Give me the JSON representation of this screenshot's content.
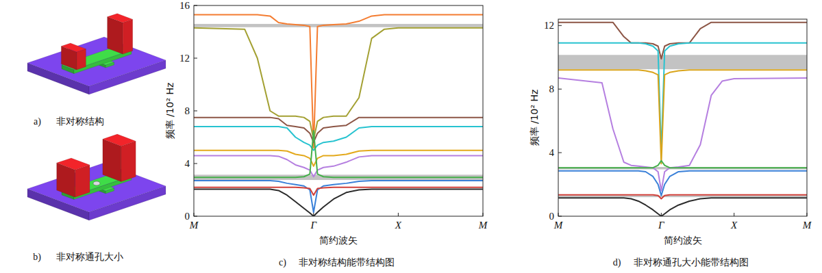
{
  "panels": [
    {
      "letter": "a)",
      "caption": "非对称结构"
    },
    {
      "letter": "b)",
      "caption": "非对称通孔大小"
    }
  ],
  "chart_data": [
    {
      "type": "line",
      "letter": "c)",
      "caption": "非对称结构能带结构图",
      "x_label": "简约波矢",
      "y_label": "频率 /10² Hz",
      "grid": false,
      "x": [
        0,
        0.6,
        0.75,
        0.9,
        1.0,
        1.1,
        1.2,
        1.3,
        1.37,
        1.414,
        1.46,
        1.53,
        1.65,
        1.8,
        1.95,
        2.1,
        2.25,
        2.414,
        3.414
      ],
      "xlim": [
        0,
        3.414
      ],
      "xticks": [
        {
          "value": 0,
          "label": "M"
        },
        {
          "value": 1.414,
          "label": "Γ"
        },
        {
          "value": 2.414,
          "label": "X"
        },
        {
          "value": 3.414,
          "label": "M"
        }
      ],
      "ylim": [
        0,
        16
      ],
      "yticks": [
        0,
        4,
        8,
        12,
        16
      ],
      "band_gaps": [
        [
          14.35,
          14.6
        ],
        [
          2.75,
          3.15
        ]
      ],
      "series": [
        {
          "color": "#f47c30",
          "values": [
            15.3,
            15.3,
            15.3,
            15.2,
            14.7,
            14.6,
            14.55,
            14.5,
            14.4,
            5.2,
            14.4,
            14.5,
            14.55,
            14.6,
            14.8,
            15.2,
            15.3,
            15.3,
            15.3
          ]
        },
        {
          "color": "#a3a032",
          "values": [
            14.3,
            14.2,
            12.0,
            8.0,
            7.6,
            7.6,
            7.6,
            7.5,
            7.2,
            5.8,
            7.2,
            7.5,
            7.6,
            7.6,
            9.0,
            13.5,
            14.2,
            14.3,
            14.3
          ]
        },
        {
          "color": "#8c5545",
          "values": [
            7.5,
            7.5,
            7.5,
            7.5,
            7.4,
            6.9,
            6.8,
            6.7,
            6.3,
            5.6,
            6.3,
            6.7,
            6.8,
            6.9,
            7.5,
            7.5,
            7.5,
            7.5,
            7.5
          ]
        },
        {
          "color": "#27c3d0",
          "values": [
            6.8,
            6.8,
            6.8,
            6.8,
            6.8,
            6.7,
            6.0,
            5.6,
            5.4,
            5.0,
            5.4,
            5.6,
            5.7,
            6.0,
            6.7,
            6.8,
            6.8,
            6.8,
            6.8
          ]
        },
        {
          "color": "#e3a91c",
          "values": [
            5.0,
            5.0,
            5.0,
            5.0,
            5.0,
            4.95,
            4.7,
            4.6,
            4.4,
            3.8,
            4.4,
            4.6,
            4.6,
            4.7,
            4.95,
            5.0,
            5.0,
            5.0,
            5.0
          ]
        },
        {
          "color": "#b57fe0",
          "values": [
            4.6,
            4.6,
            4.6,
            4.6,
            4.55,
            4.3,
            3.9,
            3.7,
            3.5,
            3.0,
            3.5,
            3.7,
            3.8,
            4.1,
            4.5,
            4.6,
            4.6,
            4.6,
            4.6
          ]
        },
        {
          "color": "#45b04a",
          "values": [
            2.95,
            2.95,
            2.95,
            2.95,
            2.95,
            2.95,
            2.95,
            3.0,
            3.2,
            6.5,
            3.2,
            3.0,
            2.95,
            2.95,
            2.95,
            2.95,
            2.95,
            2.95,
            2.95
          ]
        },
        {
          "color": "#3a80d8",
          "values": [
            2.7,
            2.7,
            2.7,
            2.7,
            2.65,
            2.5,
            2.4,
            2.3,
            2.0,
            0.3,
            2.0,
            2.3,
            2.4,
            2.5,
            2.65,
            2.7,
            2.7,
            2.7,
            2.7
          ]
        },
        {
          "color": "#d0403a",
          "values": [
            2.2,
            2.2,
            2.2,
            2.2,
            2.2,
            2.2,
            2.2,
            2.15,
            2.1,
            1.6,
            2.1,
            2.15,
            2.2,
            2.2,
            2.2,
            2.2,
            2.2,
            2.2,
            2.2
          ]
        },
        {
          "color": "#2b2b2b",
          "values": [
            2.05,
            2.05,
            2.05,
            2.05,
            1.95,
            1.6,
            1.1,
            0.6,
            0.25,
            0,
            0.3,
            0.7,
            1.3,
            1.8,
            2.0,
            2.05,
            2.05,
            2.05,
            2.05
          ]
        }
      ]
    },
    {
      "type": "line",
      "letter": "d)",
      "caption": "非对称通孔大小能带结构图",
      "x_label": "简约波矢",
      "y_label": "频率 /10² Hz",
      "grid": false,
      "x": [
        0,
        0.6,
        0.75,
        0.9,
        1.0,
        1.1,
        1.2,
        1.3,
        1.37,
        1.414,
        1.46,
        1.53,
        1.65,
        1.8,
        1.95,
        2.1,
        2.25,
        2.414,
        3.414
      ],
      "xlim": [
        0,
        3.414
      ],
      "xticks": [
        {
          "value": 0,
          "label": "M"
        },
        {
          "value": 1.414,
          "label": "Γ"
        },
        {
          "value": 2.414,
          "label": "X"
        },
        {
          "value": 3.414,
          "label": "M"
        }
      ],
      "ylim": [
        0,
        12.4
      ],
      "yticks": [
        0,
        4,
        8,
        12
      ],
      "band_gaps": [
        [
          9.25,
          10.15
        ],
        [
          2.95,
          3.1
        ],
        [
          1.2,
          1.3
        ]
      ],
      "series": [
        {
          "color": "#8c5545",
          "values": [
            12.2,
            12.2,
            12.2,
            11.3,
            10.9,
            10.9,
            10.9,
            10.85,
            10.7,
            9.9,
            10.7,
            10.85,
            10.9,
            10.9,
            11.8,
            12.2,
            12.2,
            12.2,
            12.2
          ]
        },
        {
          "color": "#27c3d0",
          "values": [
            10.9,
            10.9,
            10.9,
            10.9,
            10.9,
            10.9,
            10.85,
            10.7,
            10.4,
            4.0,
            10.4,
            10.7,
            10.85,
            10.9,
            10.9,
            10.9,
            10.9,
            10.9,
            10.9
          ]
        },
        {
          "color": "#d9a41a",
          "values": [
            9.2,
            9.2,
            9.2,
            9.2,
            9.2,
            9.2,
            9.15,
            9.05,
            8.9,
            3.3,
            8.9,
            9.05,
            9.15,
            9.2,
            9.2,
            9.2,
            9.2,
            9.2,
            9.2
          ]
        },
        {
          "color": "#b57fe0",
          "values": [
            8.7,
            8.4,
            5.5,
            3.4,
            3.2,
            3.15,
            3.1,
            3.05,
            2.8,
            1.6,
            2.8,
            3.05,
            3.1,
            3.2,
            4.5,
            7.6,
            8.5,
            8.65,
            8.7
          ]
        },
        {
          "color": "#45b04a",
          "values": [
            3.05,
            3.05,
            3.05,
            3.05,
            3.05,
            3.05,
            3.05,
            3.05,
            3.2,
            3.5,
            3.2,
            3.05,
            3.05,
            3.05,
            3.05,
            3.05,
            3.05,
            3.05,
            3.05
          ]
        },
        {
          "color": "#3a80d8",
          "values": [
            2.85,
            2.85,
            2.85,
            2.85,
            2.85,
            2.85,
            2.8,
            2.5,
            2.0,
            1.3,
            2.0,
            2.5,
            2.8,
            2.85,
            2.85,
            2.85,
            2.85,
            2.85,
            2.85
          ]
        },
        {
          "color": "#d0403a",
          "values": [
            1.35,
            1.35,
            1.35,
            1.35,
            1.35,
            1.35,
            1.35,
            1.35,
            1.3,
            1.1,
            1.3,
            1.35,
            1.35,
            1.35,
            1.35,
            1.35,
            1.35,
            1.35,
            1.35
          ]
        },
        {
          "color": "#2b2b2b",
          "values": [
            1.15,
            1.15,
            1.15,
            1.15,
            1.1,
            0.95,
            0.7,
            0.4,
            0.15,
            0,
            0.15,
            0.4,
            0.7,
            0.95,
            1.1,
            1.15,
            1.15,
            1.15,
            1.15
          ]
        }
      ]
    }
  ]
}
